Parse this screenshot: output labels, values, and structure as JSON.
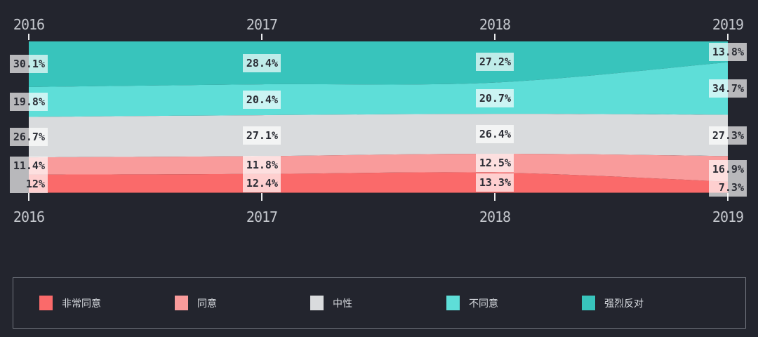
{
  "colors": {
    "background": "#23252e",
    "chip_bg": "rgba(255,255,255,0.68)",
    "chip_text": "#2b2d35",
    "axis_text": "#c4c7cd",
    "tick": "#e9eaec",
    "legend_border": "#72767f",
    "legend_text": "#d6d9de"
  },
  "chart_data": {
    "type": "area",
    "stacked": true,
    "x": [
      "2016",
      "2017",
      "2018",
      "2019"
    ],
    "unit": "%",
    "ylim": [
      0,
      100
    ],
    "grid": false,
    "x_axis_shown": [
      "top",
      "bottom"
    ],
    "legend_position": "bottom",
    "stack_order_bottom_to_top": [
      "非常同意",
      "同意",
      "中性",
      "不同意",
      "强烈反对"
    ],
    "series": [
      {
        "name": "非常同意",
        "color": "#fa6a6a",
        "values": [
          12,
          12.4,
          13.3,
          7.3
        ],
        "labels": [
          "12%",
          "12.4%",
          "13.3%",
          "7.3%"
        ]
      },
      {
        "name": "同意",
        "color": "#f99b9b",
        "values": [
          11.4,
          11.8,
          12.5,
          16.9
        ],
        "labels": [
          "11.4%",
          "11.8%",
          "12.5%",
          "16.9%"
        ]
      },
      {
        "name": "中性",
        "color": "#d9dbdd",
        "values": [
          26.7,
          27.1,
          26.4,
          27.3
        ],
        "labels": [
          "26.7%",
          "27.1%",
          "26.4%",
          "27.3%"
        ]
      },
      {
        "name": "不同意",
        "color": "#5eded8",
        "values": [
          19.8,
          20.4,
          20.7,
          34.7
        ],
        "labels": [
          "19.8%",
          "20.4%",
          "20.7%",
          "34.7%"
        ]
      },
      {
        "name": "强烈反对",
        "color": "#38c4bc",
        "values": [
          30.1,
          28.4,
          27.2,
          13.8
        ],
        "labels": [
          "30.1%",
          "28.4%",
          "27.2%",
          "13.8%"
        ]
      }
    ]
  },
  "legend": {
    "items": [
      {
        "label": "非常同意",
        "color": "#fa6a6a"
      },
      {
        "label": "同意",
        "color": "#f99b9b"
      },
      {
        "label": "中性",
        "color": "#d9dbdd"
      },
      {
        "label": "不同意",
        "color": "#5eded8"
      },
      {
        "label": "强烈反对",
        "color": "#38c4bc"
      }
    ]
  }
}
